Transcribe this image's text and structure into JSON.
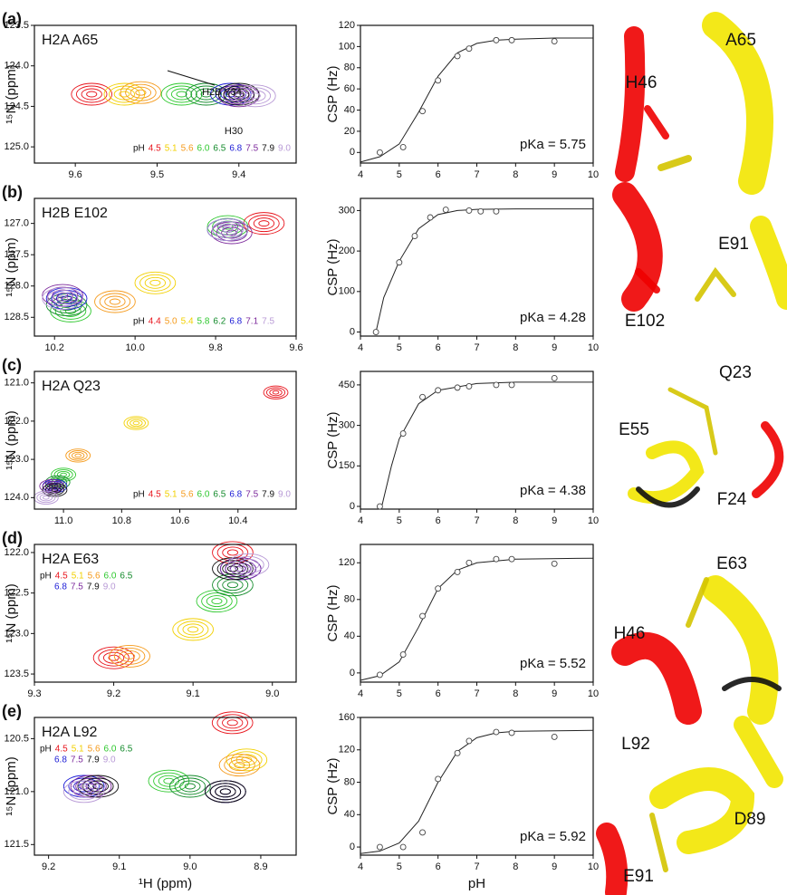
{
  "chart_data": [
    {
      "type": "scatter",
      "panel_label": "(a)",
      "title": "H2A A65",
      "y_label": "¹⁵N (ppm)",
      "xaxis_inverted": true,
      "yaxis_inverted": true,
      "xlim": [
        9.33,
        9.65
      ],
      "xticks": [
        9.6,
        9.5,
        9.4
      ],
      "ylim": [
        123.5,
        125.2
      ],
      "yticks": [
        123.5,
        {
          "value": 124,
          "label": "124.0"
        },
        124.5,
        {
          "value": 125,
          "label": "125.0"
        }
      ],
      "legend_title": "pH",
      "legend": "lower right",
      "annotations": [],
      "series": [
        {
          "name": "4.5",
          "color": "#e8141c",
          "x": [
            9.58
          ],
          "values": [
            124.35
          ]
        },
        {
          "name": "5.1",
          "color": "#f2d000",
          "x": [
            9.54
          ],
          "values": [
            124.35
          ]
        },
        {
          "name": "5.6",
          "color": "#f59a1b",
          "x": [
            9.52
          ],
          "values": [
            124.33
          ]
        },
        {
          "name": "6.0",
          "color": "#2ec82e",
          "x": [
            9.47
          ],
          "values": [
            124.35
          ]
        },
        {
          "name": "6.5",
          "color": "#138a2b",
          "x": [
            9.44
          ],
          "values": [
            124.35
          ]
        },
        {
          "name": "6.8",
          "color": "#1b1bd6",
          "x": [
            9.41
          ],
          "values": [
            124.35
          ]
        },
        {
          "name": "7.5",
          "color": "#7d2a9c",
          "x": [
            9.4
          ],
          "values": [
            124.37
          ]
        },
        {
          "name": "7.9",
          "color": "#111111",
          "x": [
            9.4
          ],
          "values": [
            124.35
          ]
        },
        {
          "name": "9.0",
          "color": "#b89ad6",
          "x": [
            9.38
          ],
          "values": [
            124.37
          ]
        }
      ]
    },
    {
      "type": "line",
      "y_label": "CSP (Hz)",
      "annotation": "pKa = 5.75",
      "xlim": [
        4,
        10
      ],
      "xticks": [
        4,
        5,
        6,
        7,
        8,
        9,
        10
      ],
      "ylim": [
        -10,
        120
      ],
      "yticks": [
        0,
        20,
        40,
        60,
        80,
        100,
        120
      ],
      "x": [
        4.5,
        5.1,
        5.6,
        6.0,
        6.5,
        6.8,
        7.5,
        7.9,
        9.0
      ],
      "values": [
        0,
        5,
        39,
        68,
        91,
        98,
        106,
        106,
        105
      ],
      "fit": {
        "x": [
          4,
          4.5,
          5,
          5.5,
          6,
          6.5,
          7,
          7.5,
          8,
          9,
          10
        ],
        "values": [
          -9,
          -4,
          8,
          38,
          72,
          94,
          103,
          106,
          107,
          108,
          108
        ]
      }
    },
    {
      "type": "scatter",
      "panel_label": "(b)",
      "title": "H2B E102",
      "y_label": "¹⁵N (ppm)",
      "xaxis_inverted": true,
      "yaxis_inverted": true,
      "xlim": [
        9.6,
        10.25
      ],
      "xticks": [
        10.2,
        {
          "value": 10,
          "label": "10.0"
        },
        9.8,
        9.6
      ],
      "ylim": [
        126.6,
        128.8
      ],
      "yticks": [
        {
          "value": 127,
          "label": "127.0"
        },
        127.5,
        {
          "value": 128,
          "label": "128.0"
        },
        128.5
      ],
      "legend_title": "pH",
      "legend": "lower right",
      "annotations": [
        "H2B Y34"
      ],
      "series": [
        {
          "name": "4.4",
          "color": "#e8141c",
          "x": [
            9.68
          ],
          "values": [
            127.0
          ]
        },
        {
          "name": "5.0",
          "color": "#f59a1b",
          "x": [
            10.05
          ],
          "values": [
            128.25
          ]
        },
        {
          "name": "5.4",
          "color": "#f2d000",
          "x": [
            9.95
          ],
          "values": [
            127.95
          ]
        },
        {
          "name": "5.8",
          "color": "#2ec82e",
          "x": [
            10.16,
            9.77
          ],
          "values": [
            128.4,
            127.05
          ]
        },
        {
          "name": "6.2",
          "color": "#138a2b",
          "x": [
            10.17,
            9.77
          ],
          "values": [
            128.3,
            127.1
          ]
        },
        {
          "name": "6.8",
          "color": "#1b1bd6",
          "x": [
            10.17,
            9.77
          ],
          "values": [
            128.2,
            127.1
          ]
        },
        {
          "name": "7.1",
          "color": "#7d2a9c",
          "x": [
            10.18,
            9.76
          ],
          "values": [
            128.15,
            127.15
          ]
        },
        {
          "name": "7.5",
          "color": "#b89ad6",
          "x": [
            10.18,
            9.77
          ],
          "values": [
            128.2,
            127.1
          ]
        }
      ]
    },
    {
      "type": "line",
      "y_label": "CSP (Hz)",
      "annotation": "pKa = 4.28",
      "xlim": [
        4,
        10
      ],
      "xticks": [
        4,
        5,
        6,
        7,
        8,
        9,
        10
      ],
      "ylim": [
        -10,
        330
      ],
      "yticks": [
        0,
        100,
        200,
        300
      ],
      "x": [
        4.4,
        5.0,
        5.4,
        5.8,
        6.2,
        6.8,
        7.1,
        7.5
      ],
      "values": [
        0,
        172,
        237,
        283,
        302,
        300,
        298,
        298
      ],
      "fit": {
        "x": [
          4.4,
          4.6,
          5,
          5.5,
          6,
          6.5,
          7,
          8,
          9,
          10
        ],
        "values": [
          0,
          85,
          175,
          255,
          290,
          300,
          303,
          304,
          304,
          304
        ]
      }
    },
    {
      "type": "scatter",
      "panel_label": "(c)",
      "title": "H2A Q23",
      "y_label": "¹⁵N (ppm)",
      "xaxis_inverted": true,
      "yaxis_inverted": true,
      "xlim": [
        10.2,
        11.1
      ],
      "xticks": [
        {
          "value": 11,
          "label": "11.0"
        },
        10.8,
        10.6,
        10.4
      ],
      "ylim": [
        120.7,
        124.3
      ],
      "yticks": [
        {
          "value": 121,
          "label": "121.0"
        },
        {
          "value": 122,
          "label": "122.0"
        },
        {
          "value": 123,
          "label": "123.0"
        },
        {
          "value": 124,
          "label": "124.0"
        }
      ],
      "legend_title": "pH",
      "legend": "lower right",
      "annotations": [],
      "series": [
        {
          "name": "4.5",
          "color": "#e8141c",
          "x": [
            10.27
          ],
          "values": [
            121.25
          ]
        },
        {
          "name": "5.1",
          "color": "#f2d000",
          "x": [
            10.75
          ],
          "values": [
            122.05
          ]
        },
        {
          "name": "5.6",
          "color": "#f59a1b",
          "x": [
            10.95
          ],
          "values": [
            122.9
          ]
        },
        {
          "name": "6.0",
          "color": "#2ec82e",
          "x": [
            11.0
          ],
          "values": [
            123.4
          ]
        },
        {
          "name": "6.5",
          "color": "#138a2b",
          "x": [
            11.02
          ],
          "values": [
            123.6
          ]
        },
        {
          "name": "6.8",
          "color": "#1b1bd6",
          "x": [
            11.03
          ],
          "values": [
            123.7
          ]
        },
        {
          "name": "7.5",
          "color": "#7d2a9c",
          "x": [
            11.04
          ],
          "values": [
            123.7
          ]
        },
        {
          "name": "7.9",
          "color": "#111111",
          "x": [
            11.03
          ],
          "values": [
            123.8
          ]
        },
        {
          "name": "9.0",
          "color": "#b89ad6",
          "x": [
            11.06
          ],
          "values": [
            124.0
          ]
        }
      ]
    },
    {
      "type": "line",
      "y_label": "CSP (Hz)",
      "annotation": "pKa = 4.38",
      "xlim": [
        4,
        10
      ],
      "xticks": [
        4,
        5,
        6,
        7,
        8,
        9,
        10
      ],
      "ylim": [
        -10,
        500
      ],
      "yticks": [
        0,
        150,
        300,
        450
      ],
      "x": [
        4.5,
        5.1,
        5.6,
        6.0,
        6.5,
        6.8,
        7.5,
        7.9,
        9.0
      ],
      "values": [
        0,
        270,
        405,
        430,
        440,
        445,
        450,
        450,
        475
      ],
      "fit": {
        "x": [
          4.55,
          4.8,
          5,
          5.5,
          6,
          7,
          8,
          10
        ],
        "values": [
          0,
          150,
          250,
          380,
          430,
          455,
          460,
          460
        ]
      }
    },
    {
      "type": "scatter",
      "panel_label": "(d)",
      "title": "H2A E63",
      "y_label": "¹⁵N (ppm)",
      "xaxis_inverted": true,
      "yaxis_inverted": true,
      "xlim": [
        8.97,
        9.3
      ],
      "xticks": [
        9.3,
        9.2,
        9.1,
        {
          "value": 9,
          "label": "9.0"
        }
      ],
      "ylim": [
        121.9,
        123.6
      ],
      "yticks": [
        {
          "value": 122,
          "label": "122.0"
        },
        122.5,
        {
          "value": 123,
          "label": "123.0"
        },
        123.5
      ],
      "legend_title": "pH",
      "legend": "upper left",
      "annotations": [],
      "series": [
        {
          "name": "4.5",
          "color": "#e8141c",
          "x": [
            9.2,
            9.05
          ],
          "values": [
            123.3,
            122.0
          ]
        },
        {
          "name": "5.1",
          "color": "#f2d000",
          "x": [
            9.1
          ],
          "values": [
            122.95
          ]
        },
        {
          "name": "5.6",
          "color": "#f59a1b",
          "x": [
            9.18
          ],
          "values": [
            123.28
          ]
        },
        {
          "name": "6.0",
          "color": "#2ec82e",
          "x": [
            9.07
          ],
          "values": [
            122.6
          ]
        },
        {
          "name": "6.5",
          "color": "#138a2b",
          "x": [
            9.05
          ],
          "values": [
            122.4
          ]
        },
        {
          "name": "6.8",
          "color": "#1b1bd6",
          "x": [
            9.04
          ],
          "values": [
            122.2
          ]
        },
        {
          "name": "7.5",
          "color": "#7d2a9c",
          "x": [
            9.04
          ],
          "values": [
            122.2
          ]
        },
        {
          "name": "7.9",
          "color": "#111111",
          "x": [
            9.05
          ],
          "values": [
            122.2
          ]
        },
        {
          "name": "9.0",
          "color": "#b89ad6",
          "x": [
            9.03
          ],
          "values": [
            122.15
          ]
        }
      ]
    },
    {
      "type": "line",
      "y_label": "CSP (Hz)",
      "annotation": "pKa = 5.52",
      "xlim": [
        4,
        10
      ],
      "xticks": [
        4,
        5,
        6,
        7,
        8,
        9,
        10
      ],
      "ylim": [
        -10,
        140
      ],
      "yticks": [
        0,
        40,
        80,
        120
      ],
      "x": [
        4.5,
        5.1,
        5.6,
        6.0,
        6.5,
        6.8,
        7.5,
        7.9,
        9.0
      ],
      "values": [
        -2,
        20,
        62,
        92,
        110,
        120,
        124,
        124,
        119
      ],
      "fit": {
        "x": [
          4,
          4.5,
          5,
          5.5,
          6,
          6.5,
          7,
          8,
          10
        ],
        "values": [
          -8,
          -3,
          12,
          50,
          92,
          112,
          120,
          124,
          125
        ]
      }
    },
    {
      "type": "scatter",
      "panel_label": "(e)",
      "title": "H2A L92",
      "y_label": "¹⁵N (ppm)",
      "x_label": "¹H (ppm)",
      "xaxis_inverted": true,
      "yaxis_inverted": true,
      "xlim": [
        8.85,
        9.22
      ],
      "xticks": [
        9.2,
        9.1,
        {
          "value": 9,
          "label": "9.0"
        },
        8.9
      ],
      "ylim": [
        120.3,
        121.6
      ],
      "yticks": [
        120.5,
        {
          "value": 121,
          "label": "121.0"
        },
        121.5
      ],
      "legend_title": "pH",
      "legend": "upper left",
      "annotations": [
        "H30"
      ],
      "series": [
        {
          "name": "4.5",
          "color": "#e8141c",
          "x": [
            8.94
          ],
          "values": [
            120.35
          ]
        },
        {
          "name": "5.1",
          "color": "#f2d000",
          "x": [
            8.92
          ],
          "values": [
            120.7
          ]
        },
        {
          "name": "5.6",
          "color": "#f59a1b",
          "x": [
            8.93
          ],
          "values": [
            120.75
          ]
        },
        {
          "name": "6.0",
          "color": "#2ec82e",
          "x": [
            9.03
          ],
          "values": [
            120.9
          ]
        },
        {
          "name": "6.5",
          "color": "#138a2b",
          "x": [
            9.0,
            8.95
          ],
          "values": [
            120.95,
            121.0
          ]
        },
        {
          "name": "6.8",
          "color": "#1b1bd6",
          "x": [
            9.15,
            8.95
          ],
          "values": [
            120.95,
            121.0
          ]
        },
        {
          "name": "7.5",
          "color": "#7d2a9c",
          "x": [
            9.14,
            8.95
          ],
          "values": [
            120.95,
            121.0
          ]
        },
        {
          "name": "7.9",
          "color": "#111111",
          "x": [
            9.13,
            8.95
          ],
          "values": [
            120.95,
            121.0
          ]
        },
        {
          "name": "9.0",
          "color": "#b89ad6",
          "x": [
            9.15
          ],
          "values": [
            121.0
          ]
        }
      ]
    },
    {
      "type": "line",
      "y_label": "CSP (Hz)",
      "x_label": "pH",
      "annotation": "pKa = 5.92",
      "xlim": [
        4,
        10
      ],
      "xticks": [
        4,
        5,
        6,
        7,
        8,
        9,
        10
      ],
      "ylim": [
        -10,
        160
      ],
      "yticks": [
        0,
        40,
        80,
        120,
        160
      ],
      "x": [
        4.5,
        5.1,
        5.6,
        6.0,
        6.5,
        6.8,
        7.5,
        7.9,
        9.0
      ],
      "values": [
        0,
        0,
        18,
        84,
        116,
        131,
        142,
        141,
        136
      ],
      "fit": {
        "x": [
          4,
          4.5,
          5,
          5.5,
          6,
          6.5,
          7,
          7.5,
          8,
          10
        ],
        "values": [
          -8,
          -5,
          5,
          32,
          80,
          118,
          135,
          141,
          143,
          144
        ]
      }
    }
  ],
  "structures": [
    [
      "A65",
      "H46"
    ],
    [
      "E91",
      "E102"
    ],
    [
      "Q23",
      "E55",
      "F24"
    ],
    [
      "H46",
      "E63"
    ],
    [
      "L92",
      "D89",
      "E91"
    ]
  ]
}
